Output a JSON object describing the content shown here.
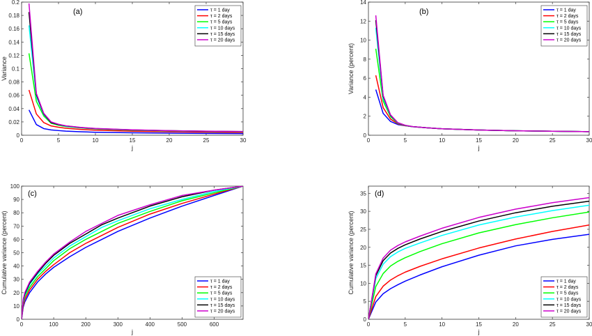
{
  "chart_data": [
    {
      "id": "a",
      "type": "line",
      "panel_label": "(a)",
      "xlabel": "j",
      "ylabel": "Variance",
      "xlim": [
        0,
        30
      ],
      "ylim": [
        0,
        0.2
      ],
      "xticks": [
        0,
        5,
        10,
        15,
        20,
        25,
        30
      ],
      "yticks": [
        0,
        0.02,
        0.04,
        0.06,
        0.08,
        0.1,
        0.12,
        0.14,
        0.16,
        0.18,
        0.2
      ],
      "grid": false,
      "legend_position": "top-right",
      "series": [
        {
          "name": "τ = 1 day",
          "color": "#0000ff",
          "x": [
            1,
            2,
            3,
            4,
            5,
            6,
            8,
            10,
            15,
            20,
            25,
            30
          ],
          "y": [
            0.038,
            0.016,
            0.01,
            0.008,
            0.007,
            0.0062,
            0.0052,
            0.0045,
            0.0036,
            0.0031,
            0.0028,
            0.0025
          ]
        },
        {
          "name": "τ = 2 days",
          "color": "#ff0000",
          "x": [
            1,
            2,
            3,
            4,
            5,
            6,
            8,
            10,
            15,
            20,
            25,
            30
          ],
          "y": [
            0.068,
            0.032,
            0.019,
            0.014,
            0.012,
            0.0105,
            0.0088,
            0.0076,
            0.006,
            0.0052,
            0.0046,
            0.0042
          ]
        },
        {
          "name": "τ = 5 days",
          "color": "#00ff00",
          "x": [
            1,
            2,
            3,
            4,
            5,
            6,
            8,
            10,
            15,
            20,
            25,
            30
          ],
          "y": [
            0.123,
            0.051,
            0.029,
            0.018,
            0.015,
            0.013,
            0.011,
            0.0095,
            0.0075,
            0.0064,
            0.0057,
            0.0052
          ]
        },
        {
          "name": "τ = 10 days",
          "color": "#00ffff",
          "x": [
            1,
            2,
            3,
            4,
            5,
            6,
            8,
            10,
            15,
            20,
            25,
            30
          ],
          "y": [
            0.165,
            0.058,
            0.031,
            0.019,
            0.016,
            0.0135,
            0.0113,
            0.0098,
            0.0078,
            0.0066,
            0.0059,
            0.0054
          ]
        },
        {
          "name": "τ = 15 days",
          "color": "#000000",
          "x": [
            1,
            2,
            3,
            4,
            5,
            6,
            8,
            10,
            15,
            20,
            25,
            30
          ],
          "y": [
            0.185,
            0.061,
            0.032,
            0.019,
            0.016,
            0.014,
            0.0115,
            0.01,
            0.008,
            0.0068,
            0.006,
            0.0055
          ]
        },
        {
          "name": "τ = 20 days",
          "color": "#cc00cc",
          "x": [
            1,
            2,
            3,
            4,
            5,
            6,
            8,
            10,
            15,
            20,
            25,
            30
          ],
          "y": [
            0.198,
            0.063,
            0.033,
            0.02,
            0.0165,
            0.0142,
            0.0118,
            0.0102,
            0.0081,
            0.0069,
            0.0061,
            0.0056
          ]
        }
      ]
    },
    {
      "id": "b",
      "type": "line",
      "panel_label": "(b)",
      "xlabel": "j",
      "ylabel": "Variance (percent)",
      "xlim": [
        0,
        30
      ],
      "ylim": [
        0,
        14
      ],
      "xticks": [
        0,
        5,
        10,
        15,
        20,
        25,
        30
      ],
      "yticks": [
        0,
        2,
        4,
        6,
        8,
        10,
        12,
        14
      ],
      "grid": false,
      "legend_position": "top-right",
      "series": [
        {
          "name": "τ = 1 day",
          "color": "#0000ff",
          "x": [
            1,
            2,
            3,
            4,
            5,
            6,
            8,
            10,
            15,
            20,
            25,
            30
          ],
          "y": [
            4.8,
            2.3,
            1.45,
            1.12,
            1.0,
            0.9,
            0.78,
            0.68,
            0.55,
            0.47,
            0.42,
            0.38
          ]
        },
        {
          "name": "τ = 2 days",
          "color": "#ff0000",
          "x": [
            1,
            2,
            3,
            4,
            5,
            6,
            8,
            10,
            15,
            20,
            25,
            30
          ],
          "y": [
            6.3,
            2.9,
            1.7,
            1.2,
            1.0,
            0.9,
            0.78,
            0.68,
            0.55,
            0.47,
            0.42,
            0.38
          ]
        },
        {
          "name": "τ = 5 days",
          "color": "#00ff00",
          "x": [
            1,
            2,
            3,
            4,
            5,
            6,
            8,
            10,
            15,
            20,
            25,
            30
          ],
          "y": [
            9.1,
            3.6,
            1.95,
            1.25,
            1.02,
            0.9,
            0.78,
            0.68,
            0.55,
            0.47,
            0.42,
            0.38
          ]
        },
        {
          "name": "τ = 10 days",
          "color": "#00ffff",
          "x": [
            1,
            2,
            3,
            4,
            5,
            6,
            8,
            10,
            15,
            20,
            25,
            30
          ],
          "y": [
            11.3,
            3.9,
            2.05,
            1.28,
            1.03,
            0.9,
            0.78,
            0.68,
            0.55,
            0.47,
            0.42,
            0.38
          ]
        },
        {
          "name": "τ = 15 days",
          "color": "#000000",
          "x": [
            1,
            2,
            3,
            4,
            5,
            6,
            8,
            10,
            15,
            20,
            25,
            30
          ],
          "y": [
            12.1,
            4.1,
            2.1,
            1.3,
            1.04,
            0.91,
            0.78,
            0.68,
            0.55,
            0.47,
            0.42,
            0.38
          ]
        },
        {
          "name": "τ = 20 days",
          "color": "#cc00cc",
          "x": [
            1,
            2,
            3,
            4,
            5,
            6,
            8,
            10,
            15,
            20,
            25,
            30
          ],
          "y": [
            12.6,
            4.2,
            2.15,
            1.32,
            1.05,
            0.91,
            0.78,
            0.68,
            0.55,
            0.47,
            0.42,
            0.38
          ]
        }
      ]
    },
    {
      "id": "c",
      "type": "line",
      "panel_label": "(c)",
      "xlabel": "j",
      "ylabel": "Cumulative variance (percent)",
      "xlim": [
        0,
        690
      ],
      "ylim": [
        0,
        100
      ],
      "xticks": [
        0,
        100,
        200,
        300,
        400,
        500,
        600
      ],
      "yticks": [
        0,
        10,
        20,
        30,
        40,
        50,
        60,
        70,
        80,
        90,
        100
      ],
      "grid": false,
      "legend_position": "bottom-right",
      "series": [
        {
          "name": "τ = 1 day",
          "color": "#0000ff",
          "x": [
            0,
            5,
            10,
            25,
            50,
            75,
            100,
            150,
            200,
            250,
            300,
            400,
            500,
            600,
            690
          ],
          "y": [
            0,
            9,
            13,
            20,
            28,
            34,
            39,
            47,
            54,
            60,
            66,
            76,
            85,
            93,
            100
          ]
        },
        {
          "name": "τ = 2 days",
          "color": "#ff0000",
          "x": [
            0,
            5,
            10,
            25,
            50,
            75,
            100,
            150,
            200,
            250,
            300,
            400,
            500,
            600,
            690
          ],
          "y": [
            0,
            10,
            15,
            22,
            30,
            36,
            41,
            50,
            57,
            63,
            69,
            79,
            87,
            94,
            100
          ]
        },
        {
          "name": "τ = 5 days",
          "color": "#00ff00",
          "x": [
            0,
            5,
            10,
            25,
            50,
            75,
            100,
            150,
            200,
            250,
            300,
            400,
            500,
            600,
            690
          ],
          "y": [
            0,
            12,
            17,
            24,
            32,
            38,
            44,
            53,
            60,
            66,
            72,
            81,
            89,
            95,
            100
          ]
        },
        {
          "name": "τ = 10 days",
          "color": "#00ffff",
          "x": [
            0,
            5,
            10,
            25,
            50,
            75,
            100,
            150,
            200,
            250,
            300,
            400,
            500,
            600,
            690
          ],
          "y": [
            0,
            13,
            18,
            26,
            34,
            40,
            46,
            55,
            62,
            69,
            74,
            83,
            90,
            96,
            100
          ]
        },
        {
          "name": "τ = 15 days",
          "color": "#000000",
          "x": [
            0,
            5,
            10,
            25,
            50,
            75,
            100,
            150,
            200,
            250,
            300,
            400,
            500,
            600,
            690
          ],
          "y": [
            0,
            14,
            19,
            27,
            35,
            42,
            48,
            57,
            64,
            71,
            76,
            85,
            92,
            97,
            100
          ]
        },
        {
          "name": "τ = 20 days",
          "color": "#cc00cc",
          "x": [
            0,
            5,
            10,
            25,
            50,
            75,
            100,
            150,
            200,
            250,
            300,
            400,
            500,
            600,
            690
          ],
          "y": [
            0,
            15,
            20,
            28,
            36,
            43,
            49,
            58,
            66,
            72,
            78,
            86,
            93,
            97,
            100
          ]
        }
      ]
    },
    {
      "id": "d",
      "type": "line",
      "panel_label": "(d)",
      "xlabel": "j",
      "ylabel": "Cumulative variance (percent)",
      "xlim": [
        0,
        30
      ],
      "ylim": [
        0,
        37
      ],
      "xticks": [
        0,
        5,
        10,
        15,
        20,
        25,
        30
      ],
      "yticks": [
        0,
        5,
        10,
        15,
        20,
        25,
        30,
        35
      ],
      "grid": false,
      "legend_position": "bottom-right",
      "series": [
        {
          "name": "τ = 1 day",
          "color": "#0000ff",
          "x": [
            0,
            1,
            2,
            3,
            4,
            5,
            7,
            10,
            15,
            20,
            25,
            30
          ],
          "y": [
            0,
            4.8,
            7.1,
            8.5,
            9.6,
            10.6,
            12.3,
            14.6,
            17.8,
            20.4,
            22.2,
            23.6
          ]
        },
        {
          "name": "τ = 2 days",
          "color": "#ff0000",
          "x": [
            0,
            1,
            2,
            3,
            4,
            5,
            7,
            10,
            15,
            20,
            25,
            30
          ],
          "y": [
            0,
            6.3,
            9.2,
            10.9,
            12.1,
            13.1,
            14.7,
            16.8,
            19.8,
            22.3,
            24.4,
            26.2
          ]
        },
        {
          "name": "τ = 5 days",
          "color": "#00ff00",
          "x": [
            0,
            1,
            2,
            3,
            4,
            5,
            7,
            10,
            15,
            20,
            25,
            30
          ],
          "y": [
            0,
            9.1,
            12.7,
            14.8,
            16.1,
            17.1,
            18.8,
            21.0,
            24.0,
            26.3,
            28.2,
            29.8
          ]
        },
        {
          "name": "τ = 10 days",
          "color": "#00ffff",
          "x": [
            0,
            1,
            2,
            3,
            4,
            5,
            7,
            10,
            15,
            20,
            25,
            30
          ],
          "y": [
            0,
            11.3,
            15.3,
            17.4,
            18.7,
            19.7,
            21.2,
            23.3,
            26.2,
            28.4,
            30.2,
            31.7
          ]
        },
        {
          "name": "τ = 15 days",
          "color": "#000000",
          "x": [
            0,
            1,
            2,
            3,
            4,
            5,
            7,
            10,
            15,
            20,
            25,
            30
          ],
          "y": [
            0,
            12.1,
            16.3,
            18.4,
            19.7,
            20.7,
            22.3,
            24.4,
            27.3,
            29.6,
            31.4,
            32.8
          ]
        },
        {
          "name": "τ = 20 days",
          "color": "#cc00cc",
          "x": [
            0,
            1,
            2,
            3,
            4,
            5,
            7,
            10,
            15,
            20,
            25,
            30
          ],
          "y": [
            0,
            12.6,
            17.0,
            19.2,
            20.5,
            21.5,
            23.1,
            25.3,
            28.3,
            30.6,
            32.4,
            33.8
          ]
        }
      ]
    }
  ]
}
